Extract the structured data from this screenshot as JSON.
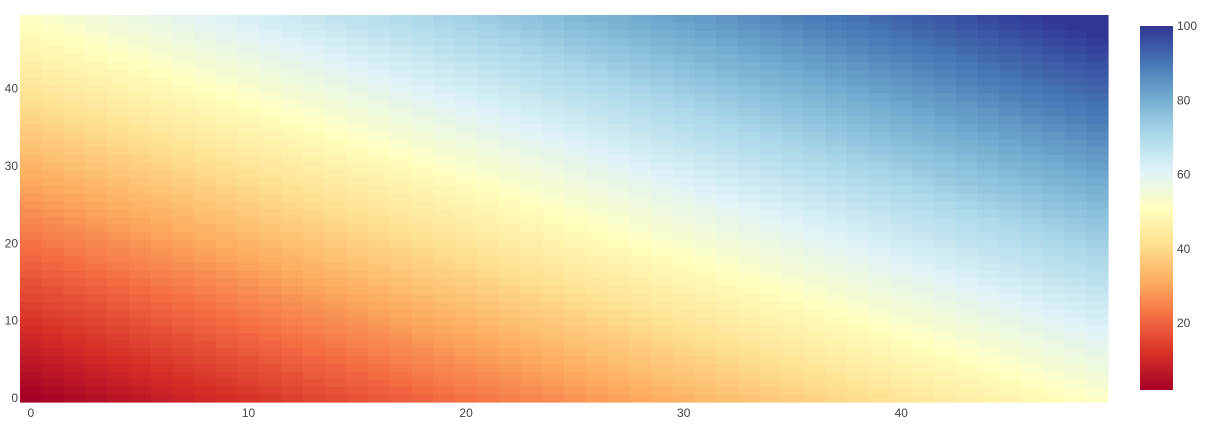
{
  "chart_data": {
    "type": "heatmap",
    "title": "",
    "xlabel": "",
    "ylabel": "",
    "x": {
      "min": 0,
      "max": 49,
      "count": 50
    },
    "y": {
      "min": 0,
      "max": 49,
      "count": 50
    },
    "z_model": "z = (x + y) * (100/98) + 2, clipped to colorscale range",
    "z_range": [
      2,
      100
    ],
    "xticks": [
      0,
      10,
      20,
      30,
      40
    ],
    "yticks": [
      0,
      10,
      20,
      30,
      40
    ],
    "colorbar": {
      "min": 2,
      "max": 100,
      "ticks": [
        20,
        40,
        60,
        80,
        100
      ]
    },
    "colorscale": [
      [
        0.0,
        "#a50026"
      ],
      [
        0.1,
        "#d73027"
      ],
      [
        0.2,
        "#f46d43"
      ],
      [
        0.3,
        "#fdae61"
      ],
      [
        0.4,
        "#fee090"
      ],
      [
        0.5,
        "#ffffbf"
      ],
      [
        0.6,
        "#e0f3f8"
      ],
      [
        0.7,
        "#abd9e9"
      ],
      [
        0.8,
        "#74add1"
      ],
      [
        0.9,
        "#4575b4"
      ],
      [
        1.0,
        "#313695"
      ]
    ]
  }
}
